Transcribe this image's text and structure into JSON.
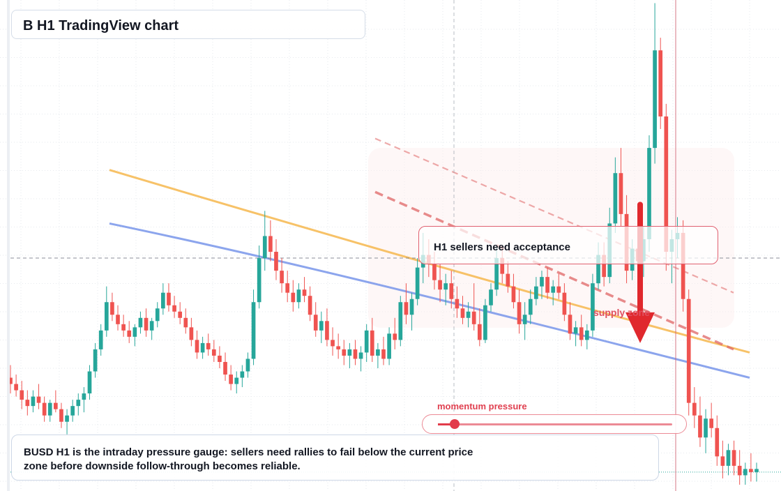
{
  "header": {
    "title": "B H1 TradingView chart"
  },
  "callout": {
    "text": "H1 sellers need acceptance"
  },
  "zone": {
    "label": "supply zone"
  },
  "gauge": {
    "label": "momentum pressure",
    "level": 0.07,
    "color": "#e23b4a"
  },
  "summary": {
    "text": "BUSD H1 is the intraday pressure gauge: sellers need rallies to fail below the current price zone before downside follow-through becomes reliable."
  },
  "colors": {
    "up": "#26a69a",
    "down": "#ef5350",
    "ma_fast": "#f5b342",
    "ma_slow": "#6f8fe8",
    "trend": "#e06666",
    "arrow": "#e0282d"
  },
  "chart_data": {
    "type": "candlestick",
    "interval": "H1",
    "grid": true,
    "ylim": [
      0.9938,
      1.0094
    ],
    "notes": "no axis tick labels visible; prices in arbitrary units",
    "candles": [
      [
        0.9974,
        0.9978,
        0.9969,
        0.9972
      ],
      [
        0.9972,
        0.9975,
        0.9968,
        0.997
      ],
      [
        0.997,
        0.9973,
        0.9964,
        0.9967
      ],
      [
        0.9967,
        0.997,
        0.9962,
        0.9965
      ],
      [
        0.9965,
        0.997,
        0.9963,
        0.9968
      ],
      [
        0.9968,
        0.9972,
        0.9964,
        0.9966
      ],
      [
        0.9966,
        0.9968,
        0.996,
        0.9962
      ],
      [
        0.9962,
        0.9967,
        0.996,
        0.9966
      ],
      [
        0.9966,
        0.997,
        0.9963,
        0.9964
      ],
      [
        0.9964,
        0.9966,
        0.9958,
        0.996
      ],
      [
        0.996,
        0.9964,
        0.9956,
        0.9962
      ],
      [
        0.9962,
        0.9967,
        0.996,
        0.9965
      ],
      [
        0.9965,
        0.9969,
        0.9962,
        0.9967
      ],
      [
        0.9967,
        0.9971,
        0.9963,
        0.9969
      ],
      [
        0.9969,
        0.9978,
        0.9967,
        0.9976
      ],
      [
        0.9976,
        0.9985,
        0.9974,
        0.9983
      ],
      [
        0.9983,
        0.9991,
        0.9981,
        0.9989
      ],
      [
        0.9989,
        1.0003,
        0.9987,
        0.9998
      ],
      [
        0.9998,
        1.0001,
        0.9992,
        0.9994
      ],
      [
        0.9994,
        0.9997,
        0.9989,
        0.9991
      ],
      [
        0.9991,
        0.9994,
        0.9987,
        0.9989
      ],
      [
        0.9989,
        0.9992,
        0.9985,
        0.9987
      ],
      [
        0.9987,
        0.9991,
        0.9984,
        0.999
      ],
      [
        0.999,
        0.9995,
        0.9988,
        0.9993
      ],
      [
        0.9993,
        0.9996,
        0.9987,
        0.9989
      ],
      [
        0.9989,
        0.9993,
        0.9986,
        0.9992
      ],
      [
        0.9992,
        0.9998,
        0.999,
        0.9996
      ],
      [
        0.9996,
        1.0004,
        0.9994,
        1.0001
      ],
      [
        1.0001,
        1.0004,
        0.9995,
        0.9997
      ],
      [
        0.9997,
        1.0,
        0.9993,
        0.9995
      ],
      [
        0.9995,
        0.9998,
        0.9991,
        0.9993
      ],
      [
        0.9993,
        0.9996,
        0.9988,
        0.999
      ],
      [
        0.999,
        0.9993,
        0.9984,
        0.9986
      ],
      [
        0.9986,
        0.9989,
        0.998,
        0.9982
      ],
      [
        0.9982,
        0.9987,
        0.998,
        0.9985
      ],
      [
        0.9985,
        0.9988,
        0.9981,
        0.9983
      ],
      [
        0.9983,
        0.9986,
        0.9979,
        0.9981
      ],
      [
        0.9981,
        0.9984,
        0.9977,
        0.9979
      ],
      [
        0.9979,
        0.9982,
        0.9973,
        0.9975
      ],
      [
        0.9975,
        0.9978,
        0.997,
        0.9972
      ],
      [
        0.9972,
        0.9976,
        0.9969,
        0.9974
      ],
      [
        0.9974,
        0.9978,
        0.9971,
        0.9976
      ],
      [
        0.9976,
        0.9982,
        0.9974,
        0.998
      ],
      [
        0.998,
        1.0002,
        0.9978,
        0.9998
      ],
      [
        0.9998,
        1.0016,
        0.9996,
        1.0012
      ],
      [
        1.0012,
        1.0027,
        1.0008,
        1.0019
      ],
      [
        1.0019,
        1.0024,
        1.0011,
        1.0014
      ],
      [
        1.0014,
        1.0018,
        1.0005,
        1.0008
      ],
      [
        1.0008,
        1.0012,
        1.0001,
        1.0004
      ],
      [
        1.0004,
        1.0008,
        0.9998,
        1.0001
      ],
      [
        1.0001,
        1.0005,
        0.9995,
        0.9998
      ],
      [
        0.9998,
        1.0004,
        0.9996,
        1.0002
      ],
      [
        1.0002,
        1.0006,
        0.9998,
        1.0
      ],
      [
        1.0,
        1.0003,
        0.9992,
        0.9994
      ],
      [
        0.9994,
        0.9998,
        0.9987,
        0.9989
      ],
      [
        0.9989,
        0.9995,
        0.9985,
        0.9992
      ],
      [
        0.9992,
        0.9996,
        0.9984,
        0.9986
      ],
      [
        0.9986,
        0.999,
        0.9981,
        0.9984
      ],
      [
        0.9984,
        0.9988,
        0.998,
        0.9983
      ],
      [
        0.9983,
        0.9986,
        0.9978,
        0.9981
      ],
      [
        0.9981,
        0.9985,
        0.9977,
        0.9983
      ],
      [
        0.9983,
        0.9986,
        0.9978,
        0.998
      ],
      [
        0.998,
        0.9984,
        0.9976,
        0.9982
      ],
      [
        0.9982,
        0.9991,
        0.9979,
        0.9989
      ],
      [
        0.9989,
        0.9993,
        0.9979,
        0.9981
      ],
      [
        0.9981,
        0.9985,
        0.9977,
        0.9983
      ],
      [
        0.9983,
        0.9987,
        0.9978,
        0.998
      ],
      [
        0.998,
        0.999,
        0.9978,
        0.9988
      ],
      [
        0.9988,
        0.9993,
        0.9983,
        0.9986
      ],
      [
        0.9986,
        1.0,
        0.9984,
        0.9998
      ],
      [
        0.9998,
        1.0004,
        0.9991,
        0.9994
      ],
      [
        0.9994,
        1.0001,
        0.9989,
        0.9999
      ],
      [
        0.9999,
        1.0012,
        0.9997,
        1.0009
      ],
      [
        1.0009,
        1.002,
        1.0004,
        1.0013
      ],
      [
        1.0013,
        1.0018,
        1.0006,
        1.001
      ],
      [
        1.001,
        1.0014,
        1.0002,
        1.0005
      ],
      [
        1.0005,
        1.001,
        0.9998,
        1.0002
      ],
      [
        1.0002,
        1.0007,
        0.9997,
        1.0004
      ],
      [
        1.0004,
        1.0008,
        0.9996,
        0.9999
      ],
      [
        0.9999,
        1.0003,
        0.9993,
        0.9996
      ],
      [
        0.9996,
        1.0,
        0.9991,
        0.9993
      ],
      [
        0.9993,
        0.9998,
        0.999,
        0.9995
      ],
      [
        0.9995,
        1.0004,
        0.9989,
        0.9991
      ],
      [
        0.9991,
        0.9996,
        0.9984,
        0.9986
      ],
      [
        0.9986,
        0.9999,
        0.9985,
        0.9997
      ],
      [
        0.9997,
        1.0004,
        0.9995,
        1.0002
      ],
      [
        1.0002,
        1.0016,
        1.0,
        1.0012
      ],
      [
        1.0012,
        1.0016,
        1.0004,
        1.0007
      ],
      [
        1.0007,
        1.0011,
        1.0001,
        1.0003
      ],
      [
        1.0003,
        1.0007,
        0.9996,
        0.9998
      ],
      [
        0.9998,
        1.0002,
        0.9988,
        0.9991
      ],
      [
        0.9991,
        0.9998,
        0.9986,
        0.9994
      ],
      [
        0.9994,
        1.0002,
        0.9991,
        0.9999
      ],
      [
        0.9999,
        1.0006,
        0.9997,
        1.0003
      ],
      [
        1.0003,
        1.0008,
        0.9999,
        1.0006
      ],
      [
        1.0006,
        1.0009,
        0.9999,
        1.0001
      ],
      [
        1.0001,
        1.0005,
        0.9997,
        1.0003
      ],
      [
        1.0003,
        1.0007,
        0.9999,
        1.0001
      ],
      [
        1.0001,
        1.0004,
        0.9992,
        0.9994
      ],
      [
        0.9994,
        0.9998,
        0.9986,
        0.9988
      ],
      [
        0.9988,
        0.9992,
        0.9984,
        0.999
      ],
      [
        0.999,
        0.9994,
        0.9984,
        0.9986
      ],
      [
        0.9986,
        0.9991,
        0.9983,
        0.9989
      ],
      [
        0.9989,
        1.0007,
        0.9987,
        1.0004
      ],
      [
        1.0004,
        1.0017,
        1.0002,
        1.0013
      ],
      [
        1.0013,
        1.0017,
        1.0003,
        1.0006
      ],
      [
        1.0006,
        1.0028,
        1.0004,
        1.0023
      ],
      [
        1.0023,
        1.0044,
        1.002,
        1.0039
      ],
      [
        1.0039,
        1.0047,
        1.0022,
        1.0026
      ],
      [
        1.0026,
        1.0032,
        1.0004,
        1.0008
      ],
      [
        1.0008,
        1.0018,
        1.0005,
        1.0015
      ],
      [
        1.0015,
        1.0019,
        1.0008,
        1.0011
      ],
      [
        1.0011,
        1.0022,
        1.0006,
        1.0018
      ],
      [
        1.0018,
        1.0051,
        1.0014,
        1.0047
      ],
      [
        1.0047,
        1.0093,
        1.0042,
        1.0078
      ],
      [
        1.0078,
        1.0082,
        1.0053,
        1.0057
      ],
      [
        1.0057,
        1.0061,
        1.0008,
        1.0014
      ],
      [
        1.0014,
        1.0021,
        1.0004,
        1.0018
      ],
      [
        1.0018,
        1.0025,
        1.0012,
        1.002
      ],
      [
        1.002,
        1.0024,
        0.9995,
        0.9999
      ],
      [
        0.9999,
        1.0002,
        0.9962,
        0.9966
      ],
      [
        0.9966,
        0.9971,
        0.9958,
        0.9962
      ],
      [
        0.9962,
        0.9968,
        0.9952,
        0.9955
      ],
      [
        0.9955,
        0.9964,
        0.995,
        0.9961
      ],
      [
        0.9961,
        0.9966,
        0.9955,
        0.9958
      ],
      [
        0.9958,
        0.9962,
        0.9946,
        0.9949
      ],
      [
        0.9949,
        0.9954,
        0.9942,
        0.9946
      ],
      [
        0.9946,
        0.9953,
        0.9943,
        0.9951
      ],
      [
        0.9951,
        0.9954,
        0.9943,
        0.9946
      ],
      [
        0.9946,
        0.9951,
        0.994,
        0.9943
      ],
      [
        0.9943,
        0.9947,
        0.994,
        0.9945
      ],
      [
        0.9945,
        0.995,
        0.9941,
        0.9944
      ],
      [
        0.9944,
        0.9947,
        0.9941,
        0.9945
      ]
    ],
    "moving_averages": [
      {
        "name": "",
        "color": "#f5b342",
        "points": [
          [
            0,
            1.004
          ],
          [
            1,
            1.002
          ],
          [
            2,
            1.0
          ],
          [
            3,
            0.9982
          ]
        ]
      },
      {
        "name": "",
        "color": "#6f8fe8",
        "points": [
          [
            0,
            1.0023
          ],
          [
            1,
            1.0009
          ],
          [
            2,
            0.9991
          ],
          [
            3,
            0.9974
          ]
        ]
      }
    ],
    "trendlines": [
      {
        "style": "dashed",
        "from": 1.005,
        "to": 1.0001
      },
      {
        "style": "dashed-bold",
        "from": 1.0033,
        "to": 0.9983
      }
    ],
    "reference_price": 1.0012,
    "current_price": 0.9944,
    "annotation_arrow": {
      "direction": "down",
      "from": 1.0029,
      "to": 0.9985
    }
  }
}
